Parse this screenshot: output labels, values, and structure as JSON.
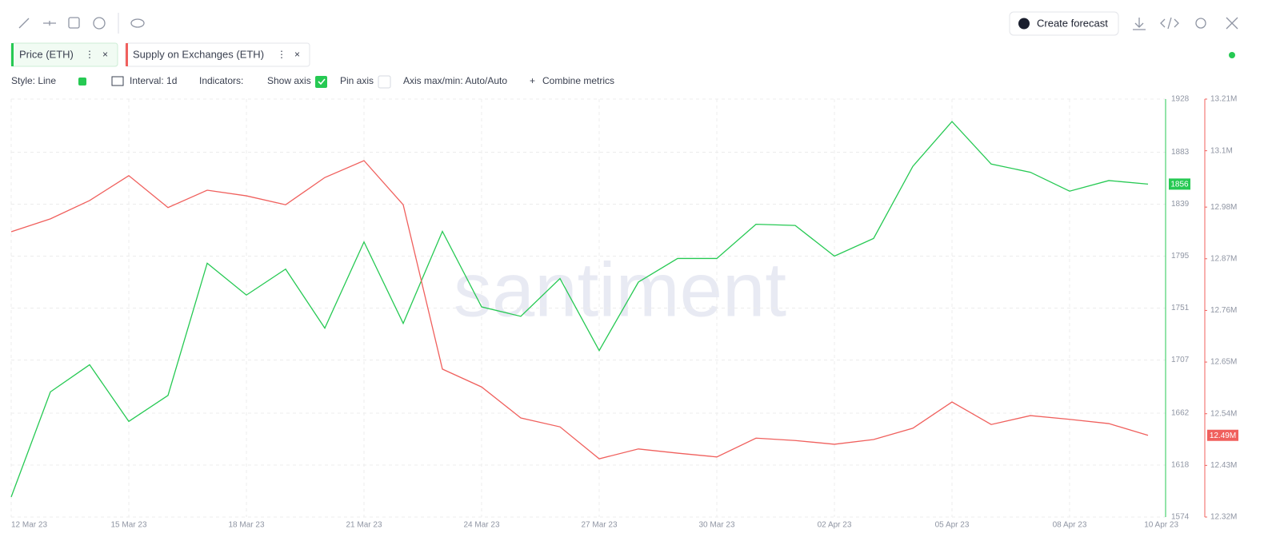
{
  "ui": {
    "forecast_button": "Create forecast",
    "style": "Style: Line",
    "interval": "Interval: 1d",
    "indicators": "Indicators:",
    "show_axis": "Show axis",
    "pin_axis": "Pin axis",
    "axis_range": "Axis max/min: Auto/Auto",
    "combine": "Combine metrics",
    "watermark": "santiment"
  },
  "chart_data": {
    "type": "line",
    "categories": [
      "12 Mar 23",
      null,
      null,
      "15 Mar 23",
      null,
      null,
      "18 Mar 23",
      null,
      null,
      "21 Mar 23",
      null,
      null,
      "24 Mar 23",
      null,
      null,
      "27 Mar 23",
      null,
      null,
      "30 Mar 23",
      null,
      null,
      "02 Apr 23",
      null,
      null,
      "05 Apr 23",
      null,
      null,
      "08 Apr 23",
      null,
      "10 Apr 23"
    ],
    "series": [
      {
        "name": "Price (ETH)",
        "color": "#26c953",
        "values": [
          1591,
          1680,
          1703,
          1655,
          1677,
          1789,
          1762,
          1784,
          1734,
          1807,
          1738,
          1816,
          1752,
          1744,
          1776,
          1715,
          1773,
          1793,
          1793,
          1822,
          1821,
          1795,
          1810,
          1871,
          1909,
          1873,
          1866,
          1850,
          1859,
          1856
        ]
      },
      {
        "name": "Supply on Exchanges (ETH)",
        "color": "#f0605d",
        "axis": "y2",
        "values": [
          12927500,
          12955000,
          12994000,
          13047000,
          12979000,
          13016000,
          13004000,
          12985000,
          13043000,
          13079000,
          12985000,
          12635000,
          12597000,
          12531000,
          12512000,
          12444000,
          12465000,
          12456000,
          12448000,
          12488000,
          12483000,
          12475000,
          12485000,
          12509000,
          12565000,
          12517000,
          12536000,
          12528000,
          12519000,
          12494000
        ],
        "value_labels": [
          null,
          null,
          null,
          null,
          null,
          null,
          null,
          null,
          null,
          null,
          null,
          null,
          null,
          null,
          null,
          null,
          null,
          null,
          null,
          null,
          null,
          null,
          null,
          null,
          null,
          null,
          null,
          null,
          null,
          "12.49M"
        ]
      }
    ],
    "ylim": [
      1574,
      1928
    ],
    "yticks": [
      1574,
      1618,
      1662,
      1707,
      1751,
      1795,
      1839,
      1883,
      1928
    ],
    "y2lim": [
      12320000,
      13210000
    ],
    "y2ticks": [
      {
        "value": 12320000,
        "label": "12.32M"
      },
      {
        "value": 12430000,
        "label": "12.43M"
      },
      {
        "value": 12540000,
        "label": "12.54M"
      },
      {
        "value": 12650000,
        "label": "12.65M"
      },
      {
        "value": 12760000,
        "label": "12.76M"
      },
      {
        "value": 12870000,
        "label": "12.87M"
      },
      {
        "value": 12980000,
        "label": "12.98M"
      },
      {
        "value": 13100000,
        "label": "13.1M"
      },
      {
        "value": 13210000,
        "label": "13.21M"
      }
    ],
    "grid": true
  }
}
